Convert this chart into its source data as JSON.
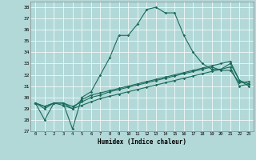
{
  "xlabel": "Humidex (Indice chaleur)",
  "background_color": "#b2d8d8",
  "grid_color": "#ffffff",
  "line_color": "#1a6b5a",
  "xlim": [
    -0.5,
    23.5
  ],
  "ylim": [
    27,
    38.5
  ],
  "yticks": [
    27,
    28,
    29,
    30,
    31,
    32,
    33,
    34,
    35,
    36,
    37,
    38
  ],
  "xticks": [
    0,
    1,
    2,
    3,
    4,
    5,
    6,
    7,
    8,
    9,
    10,
    11,
    12,
    13,
    14,
    15,
    16,
    17,
    18,
    19,
    20,
    21,
    22,
    23
  ],
  "series1": [
    29.5,
    28.0,
    29.5,
    29.5,
    27.2,
    30.0,
    30.5,
    32.0,
    33.5,
    35.5,
    35.5,
    36.5,
    37.8,
    38.0,
    37.5,
    37.5,
    35.5,
    34.0,
    33.0,
    32.5,
    32.5,
    33.0,
    31.5,
    31.0
  ],
  "series2": [
    29.5,
    29.0,
    29.5,
    29.5,
    29.0,
    29.8,
    30.2,
    30.4,
    30.6,
    30.8,
    31.0,
    31.2,
    31.4,
    31.6,
    31.8,
    32.0,
    32.2,
    32.4,
    32.6,
    32.8,
    33.0,
    33.2,
    31.5,
    31.2
  ],
  "series3": [
    29.5,
    29.2,
    29.5,
    29.5,
    29.2,
    29.6,
    30.0,
    30.2,
    30.5,
    30.7,
    30.9,
    31.1,
    31.3,
    31.5,
    31.7,
    31.9,
    32.1,
    32.3,
    32.5,
    32.7,
    32.4,
    32.4,
    31.3,
    31.4
  ],
  "series4": [
    29.5,
    29.2,
    29.5,
    29.3,
    29.0,
    29.3,
    29.6,
    29.9,
    30.1,
    30.3,
    30.5,
    30.7,
    30.9,
    31.1,
    31.3,
    31.5,
    31.7,
    31.9,
    32.1,
    32.3,
    32.5,
    32.7,
    31.0,
    31.2
  ]
}
